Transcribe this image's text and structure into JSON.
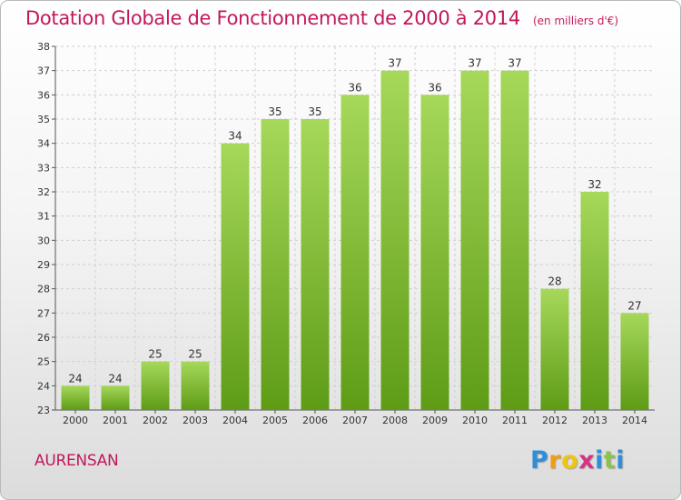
{
  "header": {
    "title": "Dotation Globale de Fonctionnement de 2000 à 2014",
    "subtitle": "(en milliers d'€)"
  },
  "footer": {
    "commune": "AURENSAN",
    "logo_letters": [
      "P",
      "r",
      "o",
      "x",
      "i",
      "t",
      "i"
    ],
    "logo_colors": [
      "#2e8fd8",
      "#f39c12",
      "#f1c40f",
      "#d63384",
      "#2e8fd8",
      "#8bc34a",
      "#2e8fd8"
    ]
  },
  "colors": {
    "bar_top": "#a6d85a",
    "bar_bottom": "#5e9c16",
    "accent": "#c2185b",
    "grid": "#d0d0d0"
  },
  "chart_data": {
    "type": "bar",
    "categories": [
      "2000",
      "2001",
      "2002",
      "2003",
      "2004",
      "2005",
      "2006",
      "2007",
      "2008",
      "2009",
      "2010",
      "2011",
      "2012",
      "2013",
      "2014"
    ],
    "values": [
      24,
      24,
      25,
      25,
      34,
      35,
      35,
      36,
      37,
      36,
      37,
      37,
      28,
      32,
      27
    ],
    "title": "Dotation Globale de Fonctionnement de 2000 à 2014",
    "subtitle": "(en milliers d'€)",
    "xlabel": "",
    "ylabel": "",
    "ylim": [
      23,
      38
    ],
    "yticks": [
      23,
      24,
      25,
      26,
      27,
      28,
      29,
      30,
      31,
      32,
      33,
      34,
      35,
      36,
      37,
      38
    ],
    "grid": true,
    "legend": "none"
  }
}
